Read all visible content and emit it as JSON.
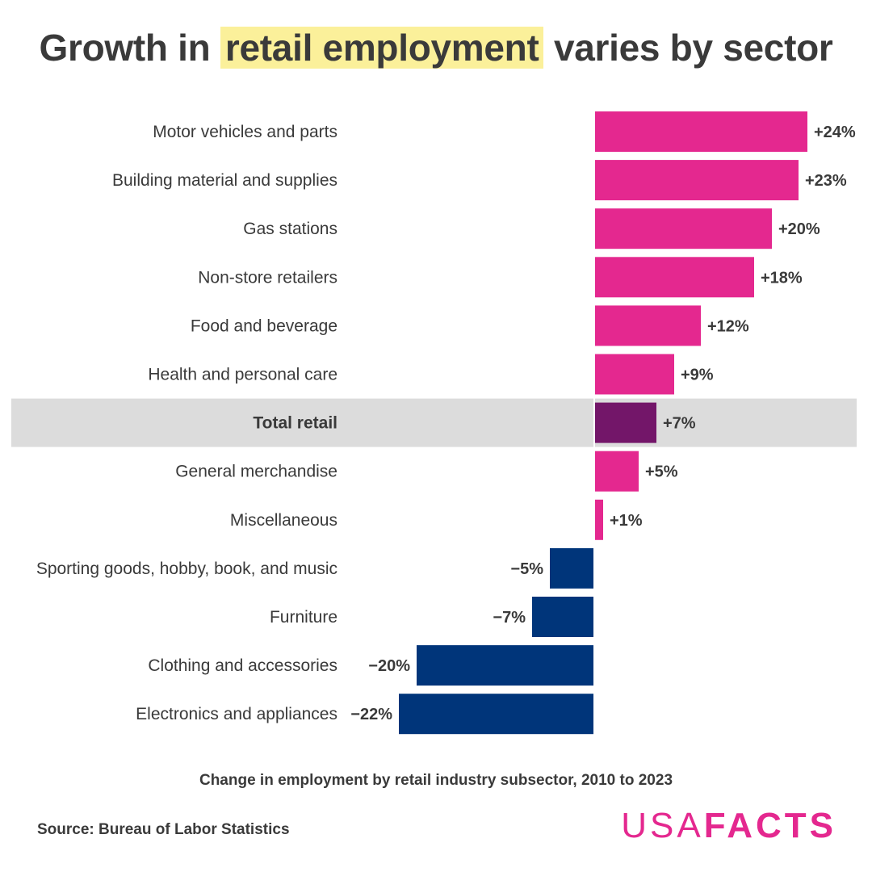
{
  "title": {
    "prefix": "Growth in ",
    "highlight": "retail employment",
    "suffix": " varies by sector"
  },
  "subtitle": "Change in employment by retail industry subsector, 2010 to 2023",
  "source": "Source: Bureau of Labor Statistics",
  "logo": {
    "part1": "USA",
    "part2": "FACTS"
  },
  "colors": {
    "positive": "#e4288f",
    "negative": "#00357a",
    "total": "#731669",
    "highlight_band": "#dcdcdc",
    "title_highlight": "#fbf09a",
    "text": "#3a3a3a"
  },
  "chart_data": {
    "type": "bar",
    "orientation": "horizontal",
    "title": "Growth in retail employment varies by sector",
    "xlabel": "Change in employment by retail industry subsector, 2010 to 2023",
    "ylabel": "",
    "xlim": [
      -22,
      24
    ],
    "grid": false,
    "highlight_category": "Total retail",
    "categories": [
      "Motor vehicles and parts",
      "Building material and supplies",
      "Gas stations",
      "Non-store retailers",
      "Food and beverage",
      "Health and personal care",
      "Total retail",
      "General merchandise",
      "Miscellaneous",
      "Sporting goods, hobby, book, and music",
      "Furniture",
      "Clothing and accessories",
      "Electronics and appliances"
    ],
    "values": [
      24,
      23,
      20,
      18,
      12,
      9,
      7,
      5,
      1,
      -5,
      -7,
      -20,
      -22
    ],
    "value_labels": [
      "+24%",
      "+23%",
      "+20%",
      "+18%",
      "+12%",
      "+9%",
      "+7%",
      "+5%",
      "+1%",
      "−5%",
      "−7%",
      "−20%",
      "−22%"
    ]
  }
}
